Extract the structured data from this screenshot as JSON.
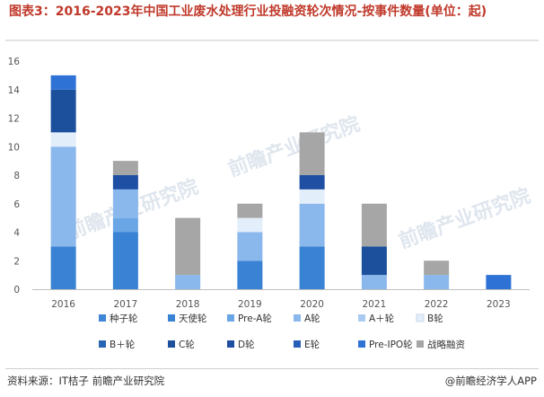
{
  "title": "图表3：2016-2023年中国工业废水处理行业投融资轮次情况-按事件数量(单位：起)",
  "footer": {
    "source": "资料来源：IT桔子 前瞻产业研究院",
    "brand": "@前瞻经济学人APP"
  },
  "watermark": "前瞻产业研究院",
  "chart_data": {
    "type": "bar",
    "stacked": true,
    "categories": [
      "2016",
      "2017",
      "2018",
      "2019",
      "2020",
      "2021",
      "2022",
      "2023"
    ],
    "ylim": [
      0,
      16
    ],
    "yticks": [
      0,
      2,
      4,
      6,
      8,
      10,
      12,
      14,
      16
    ],
    "grid": false,
    "legend_position": "bottom",
    "series": [
      {
        "name": "种子轮",
        "color": "#3f86d6",
        "values": [
          0,
          0,
          0,
          0,
          0,
          0,
          0,
          0
        ]
      },
      {
        "name": "天使轮",
        "color": "#3a82d4",
        "values": [
          3,
          4,
          0,
          2,
          3,
          0,
          0,
          0
        ]
      },
      {
        "name": "Pre-A轮",
        "color": "#6aa6e6",
        "values": [
          0,
          1,
          0,
          0,
          0,
          0,
          0,
          0
        ]
      },
      {
        "name": "A轮",
        "color": "#8ab8ec",
        "values": [
          7,
          2,
          1,
          2,
          3,
          1,
          1,
          0
        ]
      },
      {
        "name": "A＋轮",
        "color": "#a9cbf1",
        "values": [
          0,
          0,
          0,
          0,
          0,
          0,
          0,
          0
        ]
      },
      {
        "name": "B轮",
        "color": "#e3eefb",
        "values": [
          1,
          0,
          0,
          1,
          1,
          0,
          0,
          0
        ]
      },
      {
        "name": "B＋轮",
        "color": "#2966b3",
        "values": [
          0,
          0,
          0,
          0,
          0,
          0,
          0,
          0
        ]
      },
      {
        "name": "C轮",
        "color": "#1c4f9c",
        "values": [
          3,
          0,
          0,
          0,
          0,
          2,
          0,
          0
        ]
      },
      {
        "name": "D轮",
        "color": "#1f4fa3",
        "values": [
          0,
          1,
          0,
          0,
          1,
          0,
          0,
          0
        ]
      },
      {
        "name": "E轮",
        "color": "#2a5fb8",
        "values": [
          0,
          0,
          0,
          0,
          0,
          0,
          0,
          0
        ]
      },
      {
        "name": "Pre-IPO轮",
        "color": "#2f72d6",
        "values": [
          1,
          0,
          0,
          0,
          0,
          0,
          0,
          1
        ]
      },
      {
        "name": "战略融资",
        "color": "#a6a6a6",
        "values": [
          0,
          1,
          4,
          1,
          3,
          3,
          1,
          0
        ]
      }
    ]
  }
}
